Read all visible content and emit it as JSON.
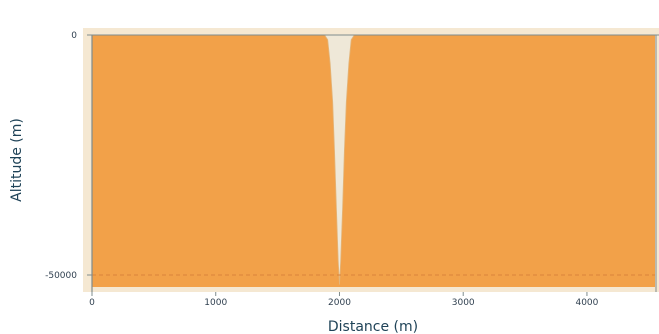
{
  "chart_data": {
    "type": "area",
    "title": "",
    "xlabel": "Distance (m)",
    "ylabel": "Altitude (m)",
    "xlim": [
      0,
      4550
    ],
    "ylim": [
      -52500,
      0
    ],
    "x_ticks": [
      0,
      1000,
      2000,
      3000,
      4000
    ],
    "x_tick_labels": [
      "0",
      "1000",
      "2000",
      "3000",
      "4000"
    ],
    "y_ticks": [
      0,
      -50000
    ],
    "y_tick_labels": [
      "0",
      "-50000"
    ],
    "reference_line": {
      "y": -50000,
      "style": "dashed"
    },
    "surface_profile": {
      "x": [
        1880,
        1905,
        1925,
        1945,
        1960,
        1975,
        1990,
        2000,
        2010,
        2025,
        2040,
        2055,
        2075,
        2095,
        2120
      ],
      "y": [
        0,
        -1000,
        -6000,
        -14000,
        -24000,
        -36000,
        -47000,
        -52000,
        -47000,
        -36000,
        -24000,
        -14000,
        -6000,
        -1000,
        0
      ]
    },
    "grid": false,
    "legend": "none",
    "colors": {
      "background_band": "#f5e8d2",
      "ground_fill": "#f2a149",
      "cut_fill": "#efe8d8",
      "reference_line": "#d9823a",
      "axis_line": "#7f8c8d",
      "text": "#1f4358"
    }
  }
}
